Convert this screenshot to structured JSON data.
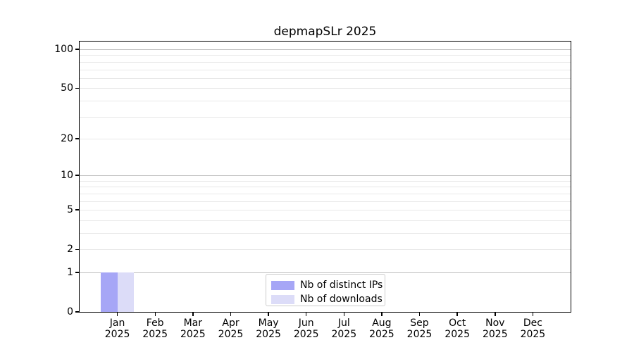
{
  "chart_data": {
    "type": "bar",
    "title": "depmapSLr 2025",
    "categories": [
      {
        "month": "Jan",
        "year": "2025"
      },
      {
        "month": "Feb",
        "year": "2025"
      },
      {
        "month": "Mar",
        "year": "2025"
      },
      {
        "month": "Apr",
        "year": "2025"
      },
      {
        "month": "May",
        "year": "2025"
      },
      {
        "month": "Jun",
        "year": "2025"
      },
      {
        "month": "Jul",
        "year": "2025"
      },
      {
        "month": "Aug",
        "year": "2025"
      },
      {
        "month": "Sep",
        "year": "2025"
      },
      {
        "month": "Oct",
        "year": "2025"
      },
      {
        "month": "Nov",
        "year": "2025"
      },
      {
        "month": "Dec",
        "year": "2025"
      }
    ],
    "series": [
      {
        "name": "Nb of distinct IPs",
        "color": "#a6a6f6",
        "values": [
          1,
          0,
          0,
          0,
          0,
          0,
          0,
          0,
          0,
          0,
          0,
          0
        ]
      },
      {
        "name": "Nb of downloads",
        "color": "#dcdcf8",
        "values": [
          1,
          0,
          0,
          0,
          0,
          0,
          0,
          0,
          0,
          0,
          0,
          0
        ]
      }
    ],
    "y_axis": {
      "scale": "log1p",
      "tick_values": [
        100,
        50,
        20,
        10,
        5,
        2,
        1,
        0
      ],
      "range": [
        0,
        116
      ]
    },
    "grid": {
      "major_values": [
        1,
        10,
        100
      ],
      "minor_values": [
        2,
        3,
        4,
        5,
        6,
        7,
        8,
        9,
        20,
        30,
        40,
        50,
        60,
        70,
        80,
        90
      ],
      "major_color": "#bdbdbd",
      "minor_color": "#e8e8e8"
    },
    "legend": {
      "position": "lower center"
    },
    "colors": {
      "spine": "#000000",
      "text": "#000000",
      "background": "#ffffff",
      "legend_border": "#cccccc"
    }
  }
}
